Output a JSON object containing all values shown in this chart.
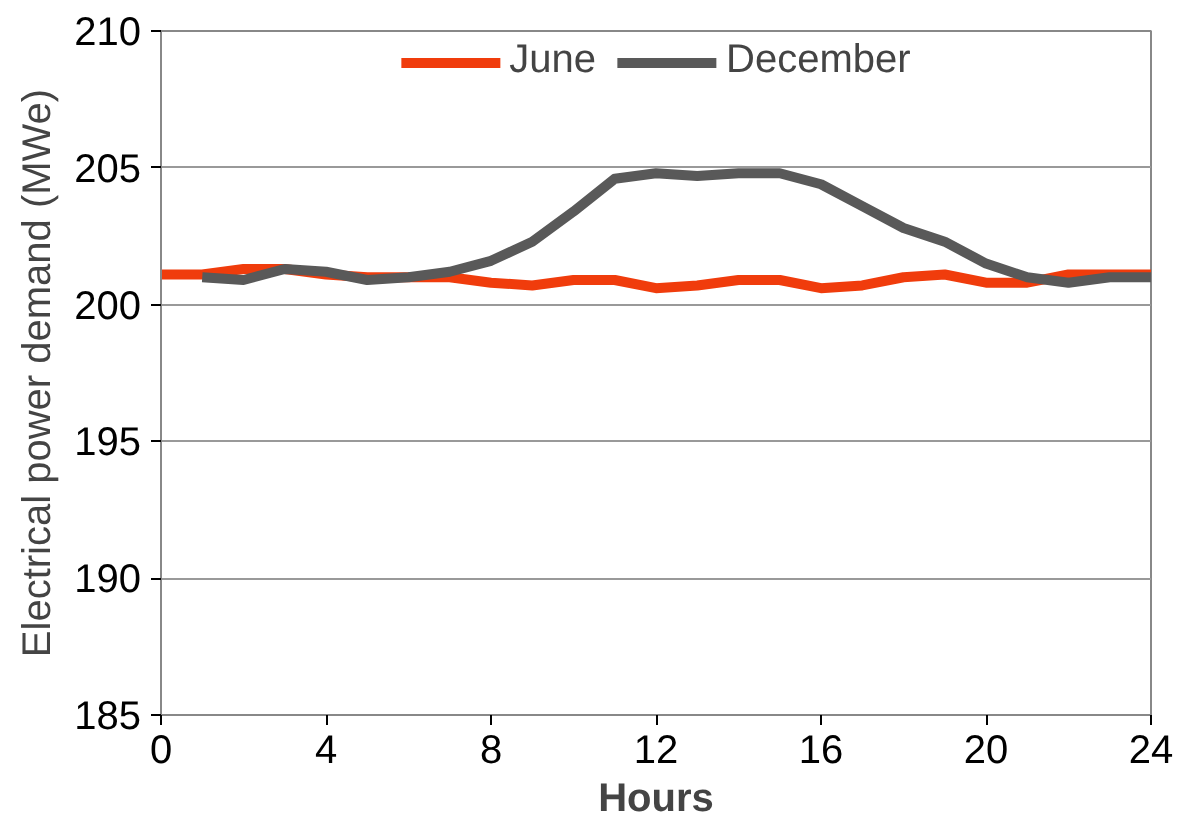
{
  "chart_data": {
    "type": "line",
    "xlabel": "Hours",
    "ylabel": "Electrical power demand (MWe)",
    "xlim": [
      0,
      24
    ],
    "xticks": [
      0,
      4,
      8,
      12,
      16,
      20,
      24
    ],
    "ylim": [
      185,
      210
    ],
    "yticks": [
      185,
      190,
      195,
      200,
      205,
      210
    ],
    "grid": "y",
    "legend": "top",
    "marker": "none",
    "series": [
      {
        "name": "June",
        "color": "#f03c0c",
        "x": [
          0,
          1,
          2,
          3,
          4,
          5,
          6,
          7,
          8,
          9,
          10,
          11,
          12,
          13,
          14,
          15,
          16,
          17,
          18,
          19,
          20,
          21,
          22,
          23,
          24
        ],
        "values": [
          201.1,
          201.1,
          201.3,
          201.3,
          201.1,
          201.0,
          201.0,
          201.0,
          200.8,
          200.7,
          200.9,
          200.9,
          200.6,
          200.7,
          200.9,
          200.9,
          200.6,
          200.7,
          201.0,
          201.1,
          200.8,
          200.8,
          201.1,
          201.1,
          201.1
        ]
      },
      {
        "name": "December",
        "color": "#595959",
        "x": [
          1,
          2,
          3,
          4,
          5,
          6,
          7,
          8,
          9,
          10,
          11,
          12,
          13,
          14,
          15,
          16,
          17,
          18,
          19,
          20,
          21,
          22,
          23,
          24
        ],
        "values": [
          201.0,
          200.9,
          201.3,
          201.2,
          200.9,
          201.0,
          201.2,
          201.6,
          202.3,
          203.4,
          204.6,
          204.8,
          204.7,
          204.8,
          204.8,
          204.4,
          203.6,
          202.8,
          202.3,
          201.5,
          201.0,
          200.8,
          201.0,
          201.0
        ]
      }
    ]
  }
}
